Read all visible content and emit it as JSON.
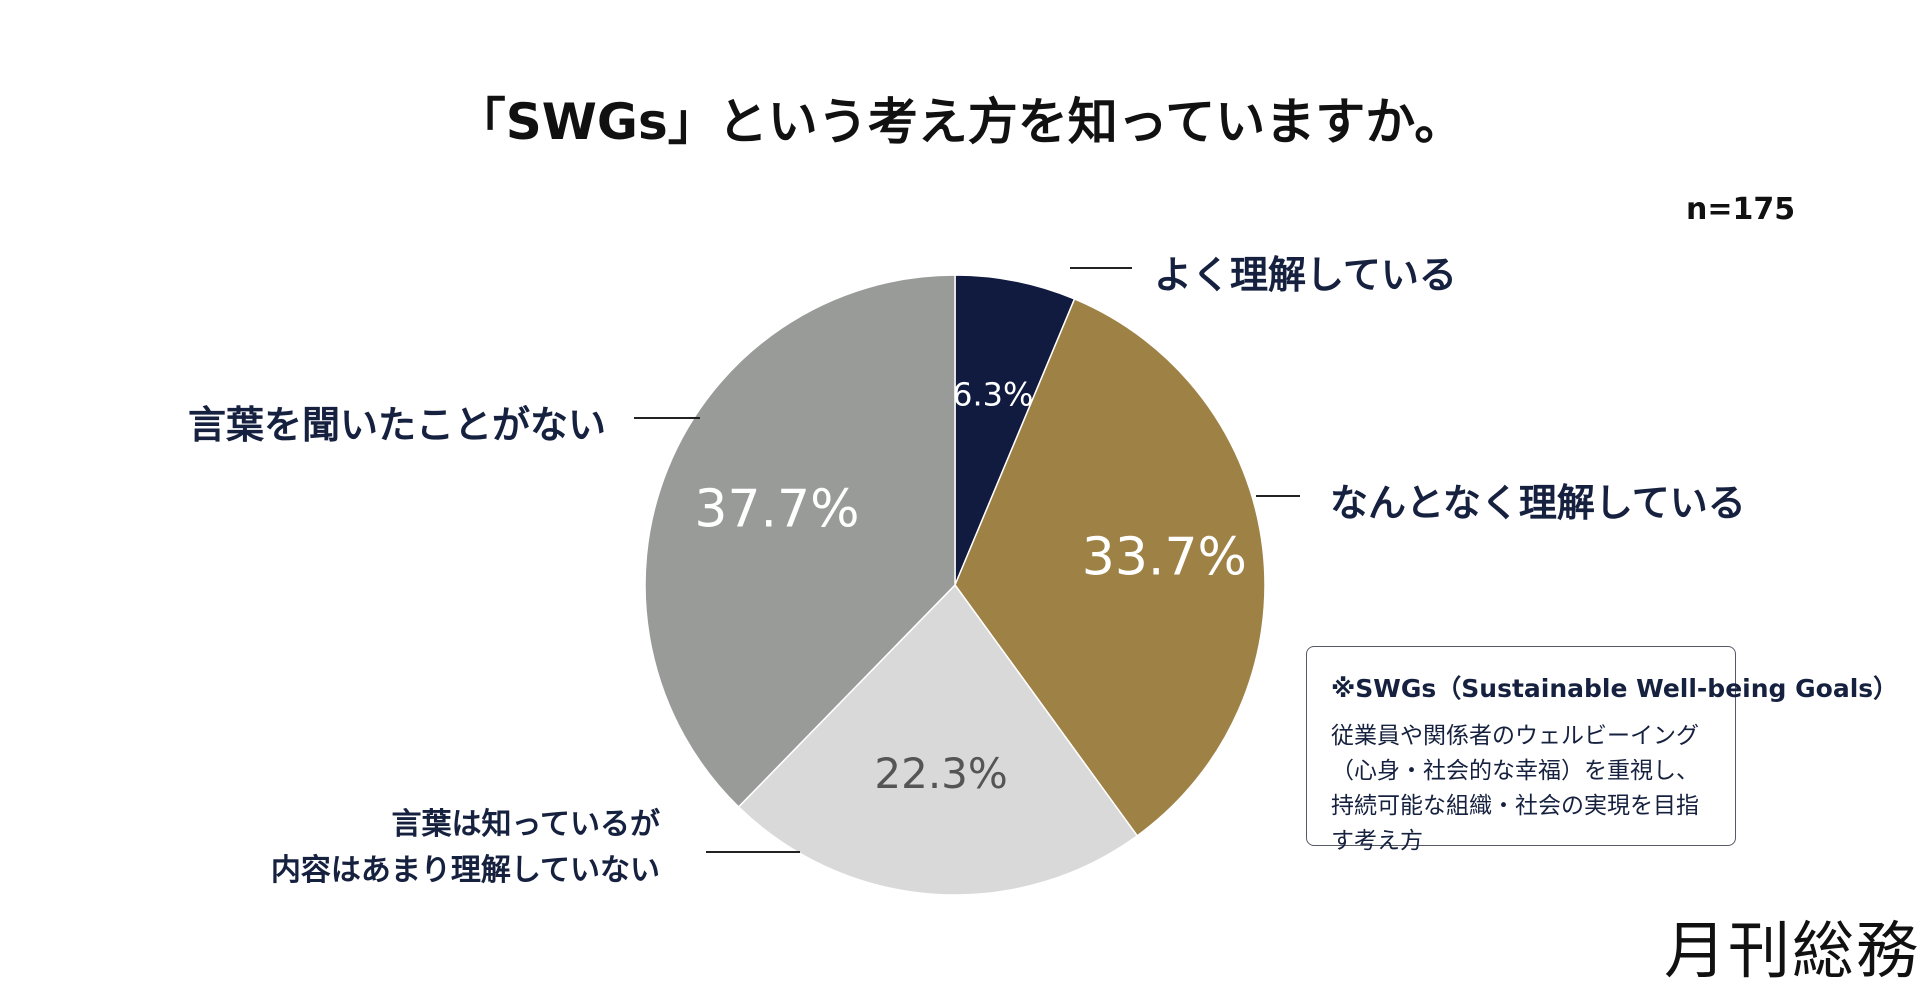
{
  "chart_data": {
    "type": "pie",
    "title": "「SWGs」という考え方を知っていますか。",
    "sample_size": "n=175",
    "categories": [
      "よく理解している",
      "なんとなく理解している",
      "言葉は知っているが内容はあまり理解していない",
      "言葉を聞いたことがない"
    ],
    "values": [
      6.3,
      33.7,
      22.3,
      37.7
    ],
    "value_labels": [
      "6.3%",
      "33.7%",
      "22.3%",
      "37.7%"
    ],
    "colors": [
      "#111a3f",
      "#9e8145",
      "#d9d9d9",
      "#999b99"
    ],
    "value_label_colors": [
      "#ffffff",
      "#ffffff",
      "#555555",
      "#ffffff"
    ]
  },
  "labels": {
    "well_understood": "よく理解している",
    "somewhat_understood": "なんとなく理解している",
    "heard_line1": "言葉は知っているが",
    "heard_line2": "内容はあまり理解していない",
    "never_heard": "言葉を聞いたことがない"
  },
  "note": {
    "title": "※SWGs（Sustainable Well-being Goals）",
    "body": "従業員や関係者のウェルビーイング（心身・社会的な幸福）を重視し、持続可能な組織・社会の実現を目指す考え方"
  },
  "logo": {
    "text": "月刊総務"
  }
}
